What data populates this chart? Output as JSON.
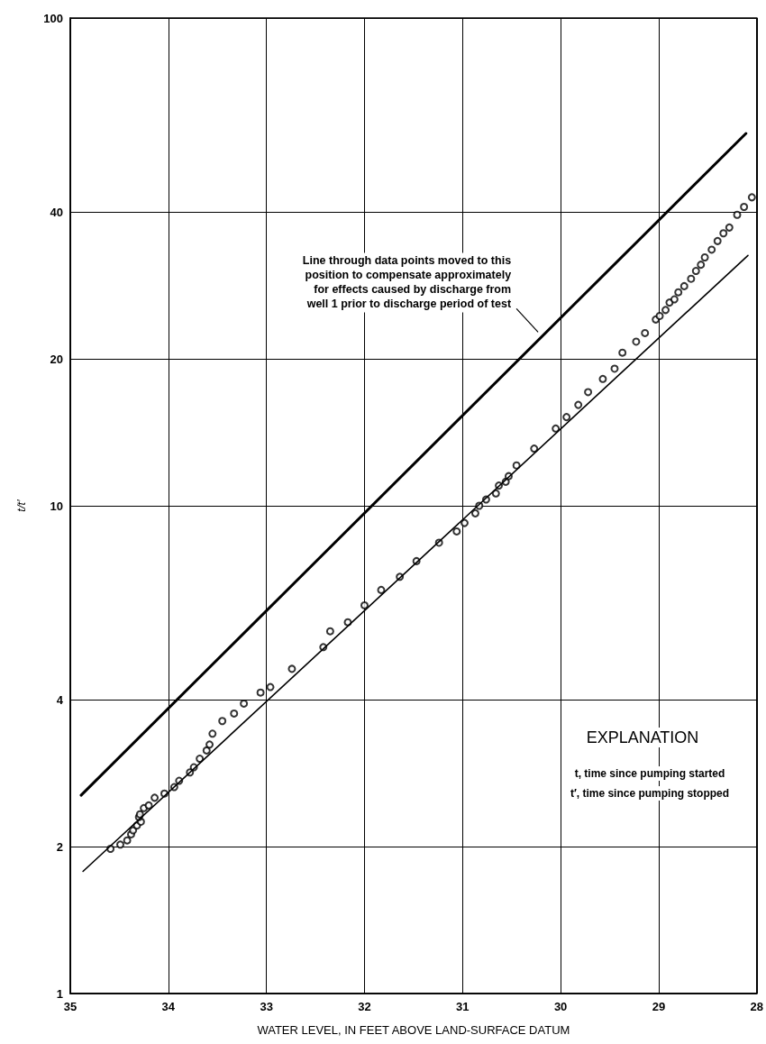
{
  "chart_data": {
    "type": "scatter",
    "xlabel": "WATER LEVEL, IN FEET ABOVE LAND-SURFACE DATUM",
    "ylabel": "t/t′",
    "xlim": [
      35,
      28
    ],
    "xticks": [
      35,
      34,
      33,
      32,
      31,
      30,
      29,
      28
    ],
    "ylim": [
      1,
      100
    ],
    "yticks": [
      1,
      2,
      4,
      10,
      20,
      40,
      100
    ],
    "log": "y",
    "grid": true,
    "marker": "circle",
    "series": [
      {
        "type": "line",
        "color": "#000000",
        "line_style": "solid",
        "marker": "none",
        "x": [
          34.89,
          28.11
        ],
        "values": [
          2.55,
          58
        ]
      },
      {
        "type": "line",
        "color": "#000000",
        "line_style": "solid",
        "marker": "none",
        "x": [
          34.87,
          28.09
        ],
        "values": [
          1.78,
          32.6
        ]
      },
      {
        "color": "#000000",
        "x": [
          34.59,
          34.49,
          34.42,
          34.38,
          34.36,
          34.32,
          34.28,
          34.3,
          34.29,
          34.25,
          34.2,
          34.14,
          34.04,
          33.94,
          33.89,
          33.78,
          33.74,
          33.68,
          33.61,
          33.58,
          33.55,
          33.45,
          33.33,
          33.23,
          33.06,
          32.96,
          32.74,
          32.42,
          32.35,
          32.17,
          32.0,
          31.83,
          31.64,
          31.47,
          31.24,
          31.06,
          30.98,
          30.87,
          30.83,
          30.76,
          30.66,
          30.63,
          30.56,
          30.53,
          30.45,
          30.27,
          30.05,
          29.94,
          29.82,
          29.72,
          29.57,
          29.45,
          29.37,
          29.23,
          29.14,
          29.03,
          28.99,
          28.93,
          28.89,
          28.84,
          28.8,
          28.74,
          28.67,
          28.62,
          28.57,
          28.53,
          28.46,
          28.4,
          28.34,
          28.28,
          28.2,
          28.13,
          28.05
        ],
        "values": [
          1.98,
          2.02,
          2.06,
          2.12,
          2.16,
          2.21,
          2.25,
          2.3,
          2.33,
          2.4,
          2.43,
          2.52,
          2.57,
          2.65,
          2.73,
          2.84,
          2.91,
          3.03,
          3.15,
          3.24,
          3.41,
          3.62,
          3.75,
          3.93,
          4.14,
          4.25,
          4.63,
          5.13,
          5.53,
          5.77,
          6.25,
          6.72,
          7.15,
          7.7,
          8.4,
          8.86,
          9.22,
          9.65,
          10.0,
          10.3,
          10.6,
          11.0,
          11.2,
          11.5,
          12.1,
          13.1,
          14.4,
          15.2,
          16.1,
          17.1,
          18.2,
          19.1,
          20.6,
          21.7,
          22.6,
          24.1,
          24.5,
          25.2,
          26.1,
          26.5,
          27.4,
          28.2,
          29.2,
          30.3,
          31.2,
          32.3,
          33.5,
          34.9,
          36.2,
          37.2,
          39.5,
          41.0,
          42.9
        ]
      }
    ],
    "annotations": [
      {
        "text": "Line through data points moved to this\nposition to compensate approximately\nfor effects caused by discharge from\nwell 1 prior to discharge period of test",
        "x": 30.23,
        "y": 22.7
      },
      "EXPLANATION",
      "t, time since pumping started",
      "t′, time since pumping stopped"
    ]
  }
}
